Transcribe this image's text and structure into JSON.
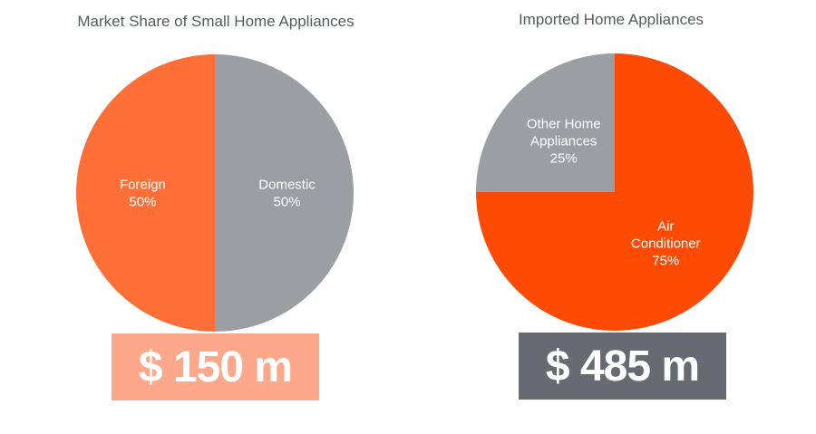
{
  "chart_data": [
    {
      "type": "pie",
      "title": "Market Share of Small Home Appliances",
      "slices": [
        {
          "label": [
            "Domestic"
          ],
          "pct_text": "50%",
          "value": 50,
          "color": "#9b9ea3"
        },
        {
          "label": [
            "Foreign"
          ],
          "pct_text": "50%",
          "value": 50,
          "color": "#fe6f38"
        }
      ],
      "total": "$ 150 m",
      "total_color": "#fda88a"
    },
    {
      "type": "pie",
      "title": "Imported Home Appliances",
      "slices": [
        {
          "label": [
            "Air",
            "Conditioner"
          ],
          "pct_text": "75%",
          "value": 75,
          "color": "#fd4a04"
        },
        {
          "label": [
            "Other Home",
            "Appliances"
          ],
          "pct_text": "25%",
          "value": 25,
          "color": "#9b9ea3"
        }
      ],
      "total": "$ 485 m",
      "total_color": "#676b71"
    }
  ]
}
